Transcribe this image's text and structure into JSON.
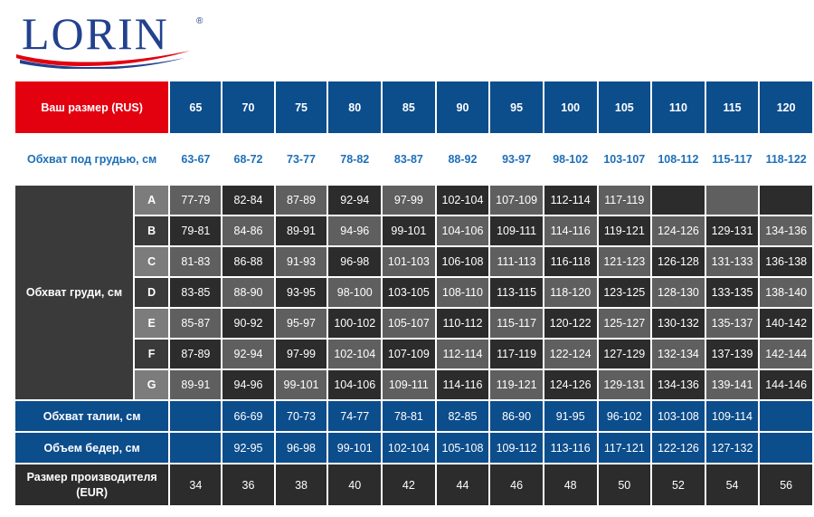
{
  "brand": {
    "name": "LORIN",
    "registered": "®"
  },
  "labels": {
    "rus_size": "Ваш размер (RUS)",
    "underbust": "Обхват под грудью, см",
    "bust": "Обхват груди, см",
    "waist": "Обхват талии, см",
    "hips": "Объем бедер, см",
    "eur_size": "Размер производителя (EUR)"
  },
  "sizes_rus": [
    "65",
    "70",
    "75",
    "80",
    "85",
    "90",
    "95",
    "100",
    "105",
    "110",
    "115",
    "120"
  ],
  "underbust": [
    "63-67",
    "68-72",
    "73-77",
    "78-82",
    "83-87",
    "88-92",
    "93-97",
    "98-102",
    "103-107",
    "108-112",
    "115-117",
    "118-122"
  ],
  "cups": [
    {
      "letter": "A",
      "values": [
        "77-79",
        "82-84",
        "87-89",
        "92-94",
        "97-99",
        "102-104",
        "107-109",
        "112-114",
        "117-119",
        "",
        "",
        ""
      ]
    },
    {
      "letter": "B",
      "values": [
        "79-81",
        "84-86",
        "89-91",
        "94-96",
        "99-101",
        "104-106",
        "109-111",
        "114-116",
        "119-121",
        "124-126",
        "129-131",
        "134-136"
      ]
    },
    {
      "letter": "C",
      "values": [
        "81-83",
        "86-88",
        "91-93",
        "96-98",
        "101-103",
        "106-108",
        "111-113",
        "116-118",
        "121-123",
        "126-128",
        "131-133",
        "136-138"
      ]
    },
    {
      "letter": "D",
      "values": [
        "83-85",
        "88-90",
        "93-95",
        "98-100",
        "103-105",
        "108-110",
        "113-115",
        "118-120",
        "123-125",
        "128-130",
        "133-135",
        "138-140"
      ]
    },
    {
      "letter": "E",
      "values": [
        "85-87",
        "90-92",
        "95-97",
        "100-102",
        "105-107",
        "110-112",
        "115-117",
        "120-122",
        "125-127",
        "130-132",
        "135-137",
        "140-142"
      ]
    },
    {
      "letter": "F",
      "values": [
        "87-89",
        "92-94",
        "97-99",
        "102-104",
        "107-109",
        "112-114",
        "117-119",
        "122-124",
        "127-129",
        "132-134",
        "137-139",
        "142-144"
      ]
    },
    {
      "letter": "G",
      "values": [
        "89-91",
        "94-96",
        "99-101",
        "104-106",
        "109-111",
        "114-116",
        "119-121",
        "124-126",
        "129-131",
        "134-136",
        "139-141",
        "144-146"
      ]
    }
  ],
  "waist": [
    "",
    "66-69",
    "70-73",
    "74-77",
    "78-81",
    "82-85",
    "86-90",
    "91-95",
    "96-102",
    "103-108",
    "109-114",
    ""
  ],
  "hips": [
    "",
    "92-95",
    "96-98",
    "99-101",
    "102-104",
    "105-108",
    "109-112",
    "113-116",
    "117-121",
    "122-126",
    "127-132",
    ""
  ],
  "sizes_eur": [
    "34",
    "36",
    "38",
    "40",
    "42",
    "44",
    "46",
    "48",
    "50",
    "52",
    "54",
    "56"
  ],
  "colors": {
    "brand_blue": "#22418e",
    "header_blue": "#0c4d8c",
    "accent_red": "#e3000f",
    "text_blue": "#1d6fb8"
  }
}
